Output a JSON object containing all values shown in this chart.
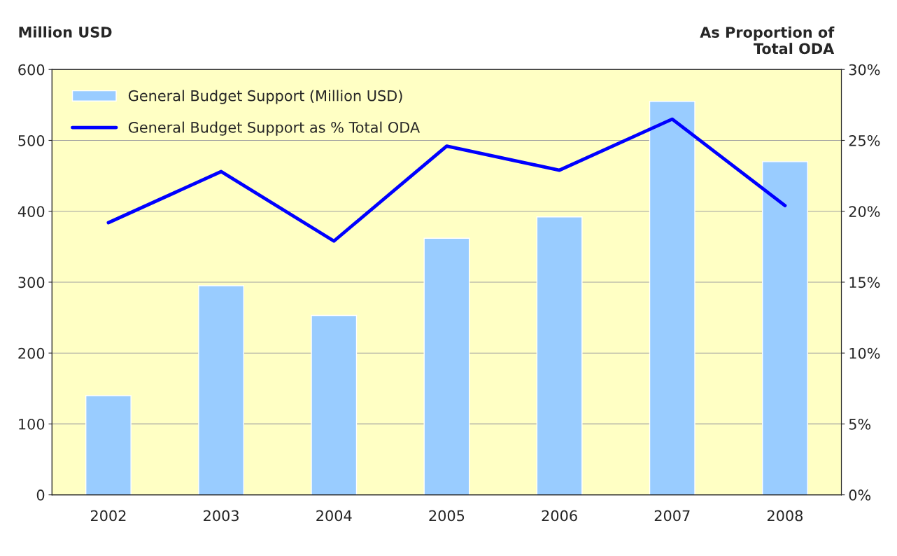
{
  "chart_data": {
    "type": "bar",
    "categories": [
      "2002",
      "2003",
      "2004",
      "2005",
      "2006",
      "2007",
      "2008"
    ],
    "series": [
      {
        "name": "General Budget Support (Million USD)",
        "color": "#99ccff",
        "values": [
          140,
          295,
          253,
          362,
          392,
          555,
          470
        ]
      },
      {
        "name": "General Budget Support as % Total ODA",
        "type": "line",
        "axis": "y2",
        "color": "#0000ff",
        "values": [
          19.2,
          22.8,
          17.9,
          24.6,
          22.9,
          26.5,
          20.4
        ]
      }
    ],
    "ylabel": "Million USD",
    "y2label": "As Proportion of\nTotal ODA",
    "ylim": [
      0,
      600
    ],
    "yticks": [
      0,
      100,
      200,
      300,
      400,
      500,
      600
    ],
    "y2lim": [
      0,
      30
    ],
    "y2ticks": [
      {
        "value": 0,
        "label": "0%"
      },
      {
        "value": 5,
        "label": "5%"
      },
      {
        "value": 10,
        "label": "10%"
      },
      {
        "value": 15,
        "label": "15%"
      },
      {
        "value": 20,
        "label": "20%"
      },
      {
        "value": 25,
        "label": "25%"
      },
      {
        "value": 30,
        "label": "30%"
      }
    ],
    "grid": "y",
    "legend": "top left",
    "marker": "none",
    "line_style": "solid"
  }
}
